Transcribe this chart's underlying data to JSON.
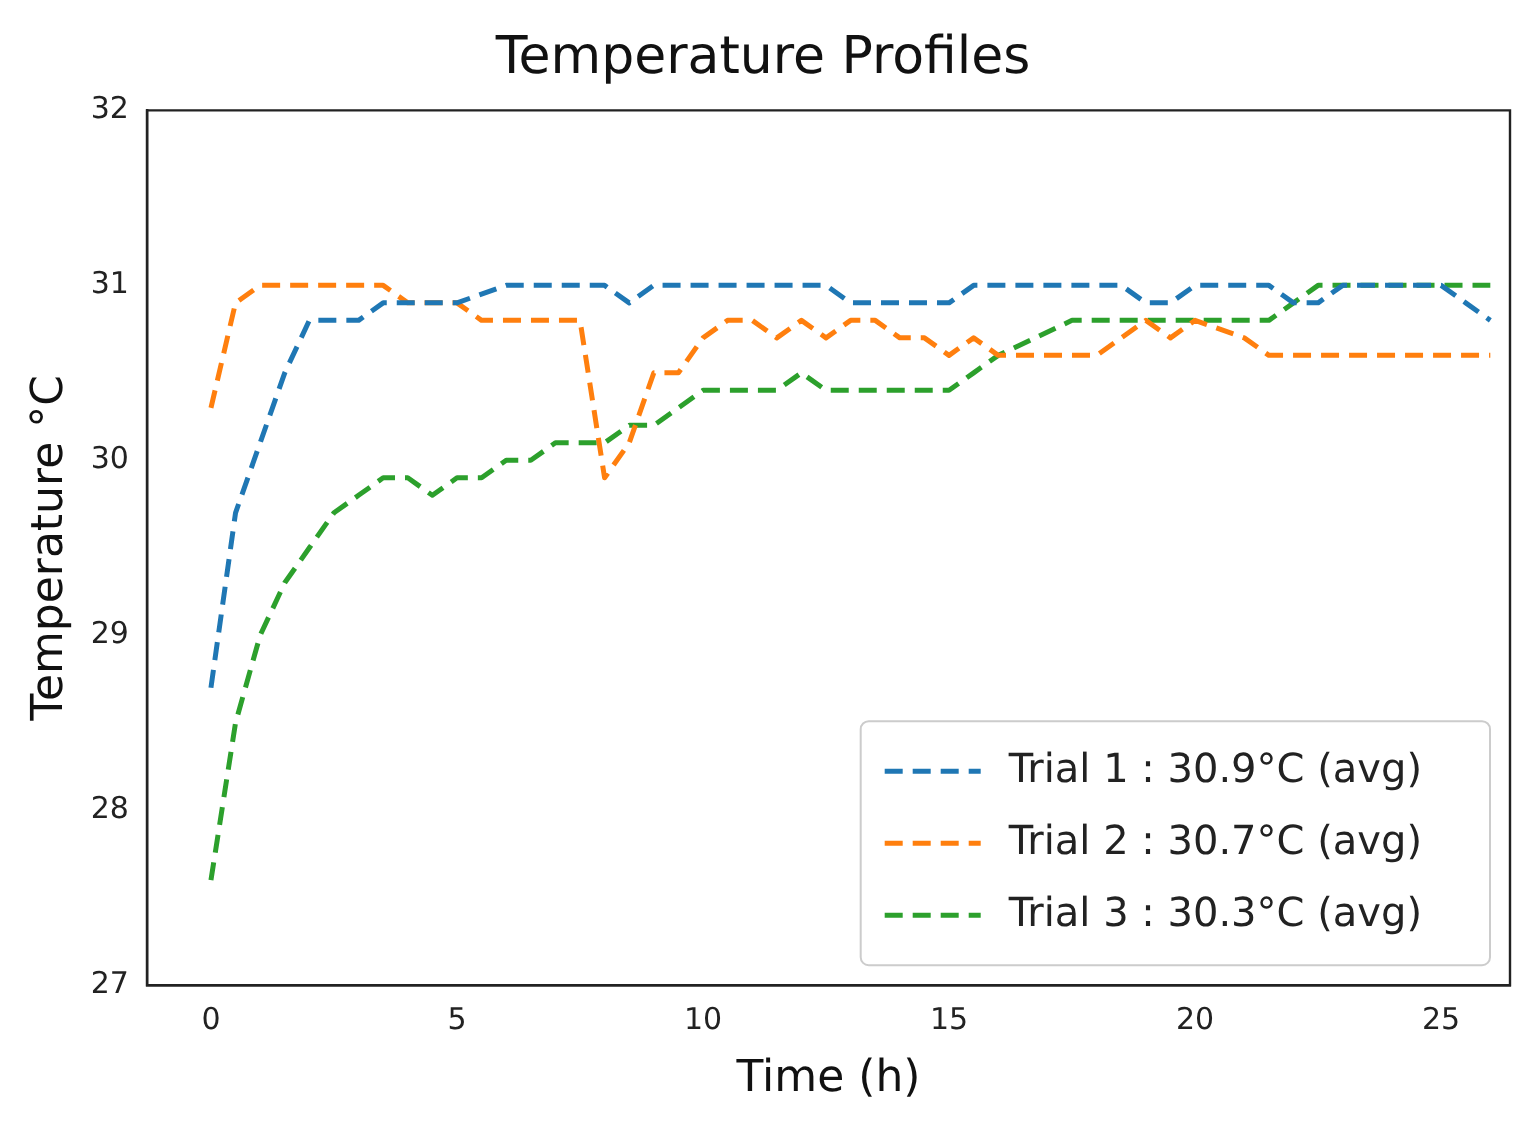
{
  "chart_data": {
    "type": "line",
    "title": "Temperature Profiles",
    "xlabel": "Time (h)",
    "ylabel": "Temperature °C",
    "xlim": [
      -1.3,
      26.4
    ],
    "xticks": [
      0,
      5,
      10,
      15,
      20,
      25
    ],
    "ylim": [
      27,
      32
    ],
    "yticks": [
      27,
      28,
      29,
      30,
      31,
      32
    ],
    "grid": false,
    "legend": "bottom right",
    "line_style": "dashed",
    "marker": "none",
    "series": [
      {
        "name": "Trial 1 : 30.9°C (avg)",
        "color": "#1f77b4",
        "x": [
          0,
          0.5,
          1,
          1.5,
          2,
          3,
          3.5,
          5,
          6,
          8,
          8.5,
          9,
          12.5,
          13,
          15,
          15.5,
          18.5,
          19,
          19.5,
          20,
          21.5,
          22,
          22.5,
          23,
          25,
          25.5,
          26
        ],
        "values": [
          28.7,
          29.7,
          30.1,
          30.5,
          30.8,
          30.8,
          30.9,
          30.9,
          31.0,
          31.0,
          30.9,
          31.0,
          31.0,
          30.9,
          30.9,
          31.0,
          31.0,
          30.9,
          30.9,
          31.0,
          31.0,
          30.9,
          30.9,
          31.0,
          31.0,
          30.9,
          30.8
        ]
      },
      {
        "name": "Trial 2 : 30.7°C (avg)",
        "color": "#ff7f0e",
        "x": [
          0,
          0.5,
          1,
          3.5,
          4,
          5,
          5.5,
          7.5,
          8,
          8.5,
          9,
          9.5,
          10,
          10.5,
          11,
          11.5,
          12,
          12.5,
          13,
          13.5,
          14,
          14.5,
          15,
          15.5,
          16,
          18,
          19,
          19.5,
          20,
          21,
          21.5,
          26
        ],
        "values": [
          30.3,
          30.9,
          31.0,
          31.0,
          30.9,
          30.9,
          30.8,
          30.8,
          29.9,
          30.1,
          30.5,
          30.5,
          30.7,
          30.8,
          30.8,
          30.7,
          30.8,
          30.7,
          30.8,
          30.8,
          30.7,
          30.7,
          30.6,
          30.7,
          30.6,
          30.6,
          30.8,
          30.7,
          30.8,
          30.7,
          30.6,
          30.6
        ]
      },
      {
        "name": "Trial 3 : 30.3°C (avg)",
        "color": "#2ca02c",
        "x": [
          0,
          0.5,
          1,
          1.5,
          2,
          2.5,
          3,
          3.5,
          4,
          4.5,
          5,
          5.5,
          6,
          6.5,
          7,
          7.5,
          8,
          8.5,
          9,
          9.5,
          10,
          11.5,
          12,
          12.5,
          15,
          15.5,
          16,
          17.5,
          20,
          21.5,
          22,
          22.5,
          26
        ],
        "values": [
          27.6,
          28.5,
          29.0,
          29.3,
          29.5,
          29.7,
          29.8,
          29.9,
          29.9,
          29.8,
          29.9,
          29.9,
          30.0,
          30.0,
          30.1,
          30.1,
          30.1,
          30.2,
          30.2,
          30.3,
          30.4,
          30.4,
          30.5,
          30.4,
          30.4,
          30.5,
          30.6,
          30.8,
          30.8,
          30.8,
          30.9,
          31.0,
          31.0
        ]
      }
    ]
  }
}
